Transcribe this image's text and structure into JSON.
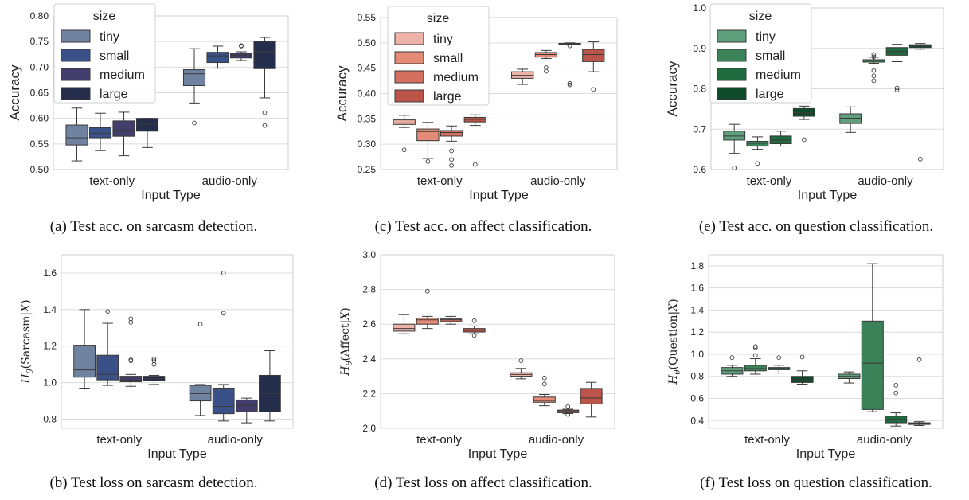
{
  "palettes": {
    "blue": [
      "#6f829f",
      "#3a5187",
      "#433d6b",
      "#252d4c"
    ],
    "red": [
      "#efb2a6",
      "#e38b76",
      "#d4705f",
      "#bb5449"
    ],
    "green": [
      "#5f9f7b",
      "#3b8258",
      "#1f6a3f",
      "#0f4a2a"
    ]
  },
  "chart_data": [
    {
      "id": "a",
      "type": "box",
      "caption": "(a) Test acc. on sarcasm detection.",
      "ylabel": "Accuracy",
      "ylabel_type": "text",
      "xlabel": "Input Type",
      "ylim": [
        0.5,
        0.8
      ],
      "yticks": [
        "0.50",
        "0.55",
        "0.60",
        "0.65",
        "0.70",
        "0.75",
        "0.80"
      ],
      "categories": [
        "text-only",
        "audio-only"
      ],
      "palette": "blue",
      "legend": {
        "title": "size",
        "entries": [
          "tiny",
          "small",
          "medium",
          "large"
        ]
      },
      "series": [
        {
          "name": "tiny",
          "boxes": [
            [
              0.517,
              0.548,
              0.562,
              0.587,
              0.62
            ],
            [
              0.63,
              0.664,
              0.687,
              0.695,
              0.736
            ]
          ],
          "outliers": [
            [],
            [
              0.591
            ]
          ]
        },
        {
          "name": "small",
          "boxes": [
            [
              0.537,
              0.562,
              0.571,
              0.582,
              0.61
            ],
            [
              0.698,
              0.709,
              0.722,
              0.729,
              0.741
            ]
          ],
          "outliers": [
            [],
            []
          ]
        },
        {
          "name": "medium",
          "boxes": [
            [
              0.527,
              0.565,
              0.577,
              0.595,
              0.612
            ],
            [
              0.713,
              0.718,
              0.723,
              0.727,
              0.73
            ]
          ],
          "outliers": [
            [],
            [
              0.741,
              0.742
            ]
          ]
        },
        {
          "name": "large",
          "boxes": [
            [
              0.543,
              0.575,
              0.589,
              0.6,
              0.6
            ],
            [
              0.64,
              0.697,
              0.73,
              0.75,
              0.758
            ]
          ],
          "outliers": [
            [],
            [
              0.611,
              0.586
            ]
          ]
        }
      ]
    },
    {
      "id": "c",
      "type": "box",
      "caption": "(c) Test acc. on affect classification.",
      "ylabel": "Accuracy",
      "ylabel_type": "text",
      "xlabel": "Input Type",
      "ylim": [
        0.25,
        0.55
      ],
      "yticks": [
        "0.25",
        "0.30",
        "0.35",
        "0.40",
        "0.45",
        "0.50",
        "0.55"
      ],
      "categories": [
        "text-only",
        "audio-only"
      ],
      "palette": "red",
      "legend": {
        "title": "size",
        "entries": [
          "tiny",
          "small",
          "medium",
          "large"
        ]
      },
      "series": [
        {
          "name": "tiny",
          "boxes": [
            [
              0.333,
              0.339,
              0.342,
              0.348,
              0.357
            ],
            [
              0.418,
              0.43,
              0.436,
              0.443,
              0.448
            ]
          ],
          "outliers": [
            [
              0.289
            ],
            []
          ]
        },
        {
          "name": "small",
          "boxes": [
            [
              0.272,
              0.307,
              0.325,
              0.33,
              0.343
            ],
            [
              0.469,
              0.472,
              0.477,
              0.481,
              0.485
            ]
          ],
          "outliers": [
            [
              0.266
            ],
            [
              0.451,
              0.444
            ]
          ]
        },
        {
          "name": "medium",
          "boxes": [
            [
              0.306,
              0.316,
              0.323,
              0.327,
              0.336
            ],
            [
              0.496,
              0.497,
              0.498,
              0.499,
              0.5
            ]
          ],
          "outliers": [
            [
              0.287,
              0.27,
              0.258
            ],
            [
              0.494,
              0.42,
              0.417
            ]
          ]
        },
        {
          "name": "large",
          "boxes": [
            [
              0.337,
              0.344,
              0.349,
              0.353,
              0.358
            ],
            [
              0.443,
              0.463,
              0.477,
              0.487,
              0.502
            ]
          ],
          "outliers": [
            [
              0.26
            ],
            [
              0.408
            ]
          ]
        }
      ]
    },
    {
      "id": "e",
      "type": "box",
      "caption": "(e) Test acc. on question classification.",
      "ylabel": "Accuracy",
      "ylabel_type": "text",
      "xlabel": "Input Type",
      "ylim": [
        0.6,
        1.0
      ],
      "yticks": [
        "0.6",
        "0.7",
        "0.8",
        "0.9",
        "1.0"
      ],
      "categories": [
        "text-only",
        "audio-only"
      ],
      "palette": "green",
      "legend": {
        "title": "size",
        "entries": [
          "tiny",
          "small",
          "medium",
          "large"
        ]
      },
      "series": [
        {
          "name": "tiny",
          "boxes": [
            [
              0.64,
              0.673,
              0.683,
              0.695,
              0.712
            ],
            [
              0.692,
              0.714,
              0.727,
              0.738,
              0.755
            ]
          ],
          "outliers": [
            [
              0.604
            ],
            []
          ]
        },
        {
          "name": "small",
          "boxes": [
            [
              0.65,
              0.658,
              0.665,
              0.67,
              0.681
            ],
            [
              0.863,
              0.866,
              0.869,
              0.872,
              0.878
            ]
          ],
          "outliers": [
            [
              0.615
            ],
            [
              0.885,
              0.879,
              0.845,
              0.832,
              0.82
            ]
          ]
        },
        {
          "name": "medium",
          "boxes": [
            [
              0.658,
              0.664,
              0.673,
              0.683,
              0.695
            ],
            [
              0.867,
              0.883,
              0.892,
              0.902,
              0.91
            ]
          ],
          "outliers": [
            [],
            [
              0.802,
              0.797
            ]
          ]
        },
        {
          "name": "large",
          "boxes": [
            [
              0.724,
              0.732,
              0.741,
              0.751,
              0.757
            ],
            [
              0.898,
              0.902,
              0.906,
              0.909,
              0.912
            ]
          ],
          "outliers": [
            [
              0.674
            ],
            [
              0.626
            ]
          ]
        }
      ]
    },
    {
      "id": "b",
      "type": "box",
      "caption": "(b) Test loss on sarcasm detection.",
      "ylabel": "Sarcasm",
      "ylabel_type": "H",
      "xlabel": "Input Type",
      "ylim": [
        0.75,
        1.7
      ],
      "yticks": [
        "0.8",
        "1.0",
        "1.2",
        "1.4",
        "1.6"
      ],
      "categories": [
        "text-only",
        "audio-only"
      ],
      "palette": "blue",
      "series": [
        {
          "name": "tiny",
          "boxes": [
            [
              0.97,
              1.03,
              1.07,
              1.205,
              1.4
            ],
            [
              0.82,
              0.9,
              0.94,
              0.985,
              0.99
            ]
          ],
          "outliers": [
            [],
            [
              1.32
            ]
          ]
        },
        {
          "name": "small",
          "boxes": [
            [
              0.985,
              1.015,
              1.045,
              1.15,
              1.325
            ],
            [
              0.79,
              0.83,
              0.87,
              0.97,
              0.99
            ]
          ],
          "outliers": [
            [
              1.39
            ],
            [
              1.6,
              1.38
            ]
          ]
        },
        {
          "name": "medium",
          "boxes": [
            [
              0.98,
              1.005,
              1.015,
              1.035,
              1.045
            ],
            [
              0.78,
              0.84,
              0.875,
              0.905,
              0.915
            ]
          ],
          "outliers": [
            [
              1.35,
              1.33,
              1.12,
              1.125
            ],
            []
          ]
        },
        {
          "name": "large",
          "boxes": [
            [
              0.99,
              1.01,
              1.02,
              1.035,
              1.04
            ],
            [
              0.79,
              0.84,
              0.94,
              1.04,
              1.175
            ]
          ],
          "outliers": [
            [
              1.13,
              1.12,
              1.1
            ],
            []
          ]
        }
      ]
    },
    {
      "id": "d",
      "type": "box",
      "caption": "(d) Test loss on affect classification.",
      "ylabel": "Affect",
      "ylabel_type": "H",
      "xlabel": "Input Type",
      "ylim": [
        2.0,
        3.0
      ],
      "yticks": [
        "2.0",
        "2.2",
        "2.4",
        "2.6",
        "2.8",
        "3.0"
      ],
      "categories": [
        "text-only",
        "audio-only"
      ],
      "palette": "red",
      "series": [
        {
          "name": "tiny",
          "boxes": [
            [
              2.545,
              2.56,
              2.575,
              2.6,
              2.655
            ],
            [
              2.285,
              2.3,
              2.31,
              2.32,
              2.345
            ]
          ],
          "outliers": [
            [],
            [
              2.39
            ]
          ]
        },
        {
          "name": "small",
          "boxes": [
            [
              2.575,
              2.6,
              2.625,
              2.635,
              2.645
            ],
            [
              2.13,
              2.15,
              2.16,
              2.18,
              2.195
            ]
          ],
          "outliers": [
            [
              2.79
            ],
            [
              2.29,
              2.255
            ]
          ]
        },
        {
          "name": "medium",
          "boxes": [
            [
              2.6,
              2.615,
              2.625,
              2.63,
              2.645
            ],
            [
              2.085,
              2.09,
              2.1,
              2.105,
              2.11
            ]
          ],
          "outliers": [
            [],
            [
              2.125,
              2.08
            ]
          ]
        },
        {
          "name": "large",
          "boxes": [
            [
              2.545,
              2.555,
              2.565,
              2.575,
              2.59
            ],
            [
              2.065,
              2.14,
              2.175,
              2.23,
              2.265
            ]
          ],
          "outliers": [
            [
              2.62,
              2.535
            ],
            []
          ]
        }
      ]
    },
    {
      "id": "f",
      "type": "box",
      "caption": "(f) Test loss on question classification.",
      "ylabel": "Question",
      "ylabel_type": "H",
      "xlabel": "Input Type",
      "ylim": [
        0.33,
        1.9
      ],
      "yticks": [
        "0.4",
        "0.6",
        "0.8",
        "1.0",
        "1.2",
        "1.4",
        "1.6",
        "1.8"
      ],
      "categories": [
        "text-only",
        "audio-only"
      ],
      "palette": "green",
      "series": [
        {
          "name": "tiny",
          "boxes": [
            [
              0.8,
              0.82,
              0.85,
              0.88,
              0.9
            ],
            [
              0.74,
              0.78,
              0.8,
              0.82,
              0.84
            ]
          ],
          "outliers": [
            [
              0.97
            ],
            []
          ]
        },
        {
          "name": "small",
          "boxes": [
            [
              0.82,
              0.85,
              0.87,
              0.9,
              0.96
            ],
            [
              0.48,
              0.5,
              0.92,
              1.3,
              1.82
            ]
          ],
          "outliers": [
            [
              1.07,
              1.06,
              0.99
            ],
            []
          ]
        },
        {
          "name": "medium",
          "boxes": [
            [
              0.83,
              0.86,
              0.87,
              0.88,
              0.9
            ],
            [
              0.35,
              0.38,
              0.41,
              0.44,
              0.47
            ]
          ],
          "outliers": [
            [
              0.97
            ],
            [
              0.72,
              0.65
            ]
          ]
        },
        {
          "name": "large",
          "boxes": [
            [
              0.73,
              0.745,
              0.77,
              0.8,
              0.85
            ],
            [
              0.355,
              0.365,
              0.375,
              0.38,
              0.39
            ]
          ],
          "outliers": [
            [
              0.975
            ],
            [
              0.95
            ]
          ]
        }
      ]
    }
  ]
}
